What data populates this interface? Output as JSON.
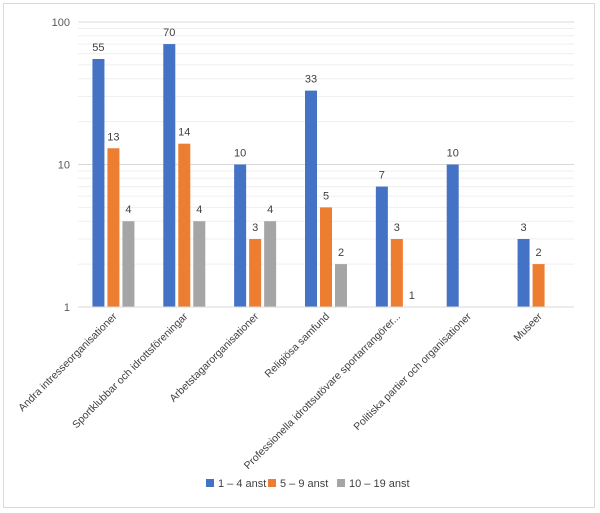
{
  "chart_data": {
    "type": "bar",
    "scale": "log",
    "title": "",
    "xlabel": "",
    "ylabel": "",
    "ylim": [
      1,
      100
    ],
    "yticks": [
      "1",
      "10",
      "100"
    ],
    "grid": true,
    "legend_position": "bottom",
    "categories": [
      "Andra intresseorganisationer",
      "Sportklubbar och idrottsföreningar",
      "Arbetstagarorganisationer",
      "Religiösa samfund",
      "Professionella idrottsutövare sportarrangörer...",
      "Politiska partier och organisationer",
      "Museer"
    ],
    "series": [
      {
        "name": "1 – 4 anst",
        "color": "#4472C4",
        "values": [
          55,
          70,
          10,
          33,
          7,
          10,
          3
        ]
      },
      {
        "name": "5 – 9 anst",
        "color": "#ED7D31",
        "values": [
          13,
          14,
          3,
          5,
          3,
          null,
          2
        ]
      },
      {
        "name": "10 – 19 anst",
        "color": "#A5A5A5",
        "values": [
          4,
          4,
          4,
          2,
          1,
          null,
          null
        ]
      }
    ]
  }
}
